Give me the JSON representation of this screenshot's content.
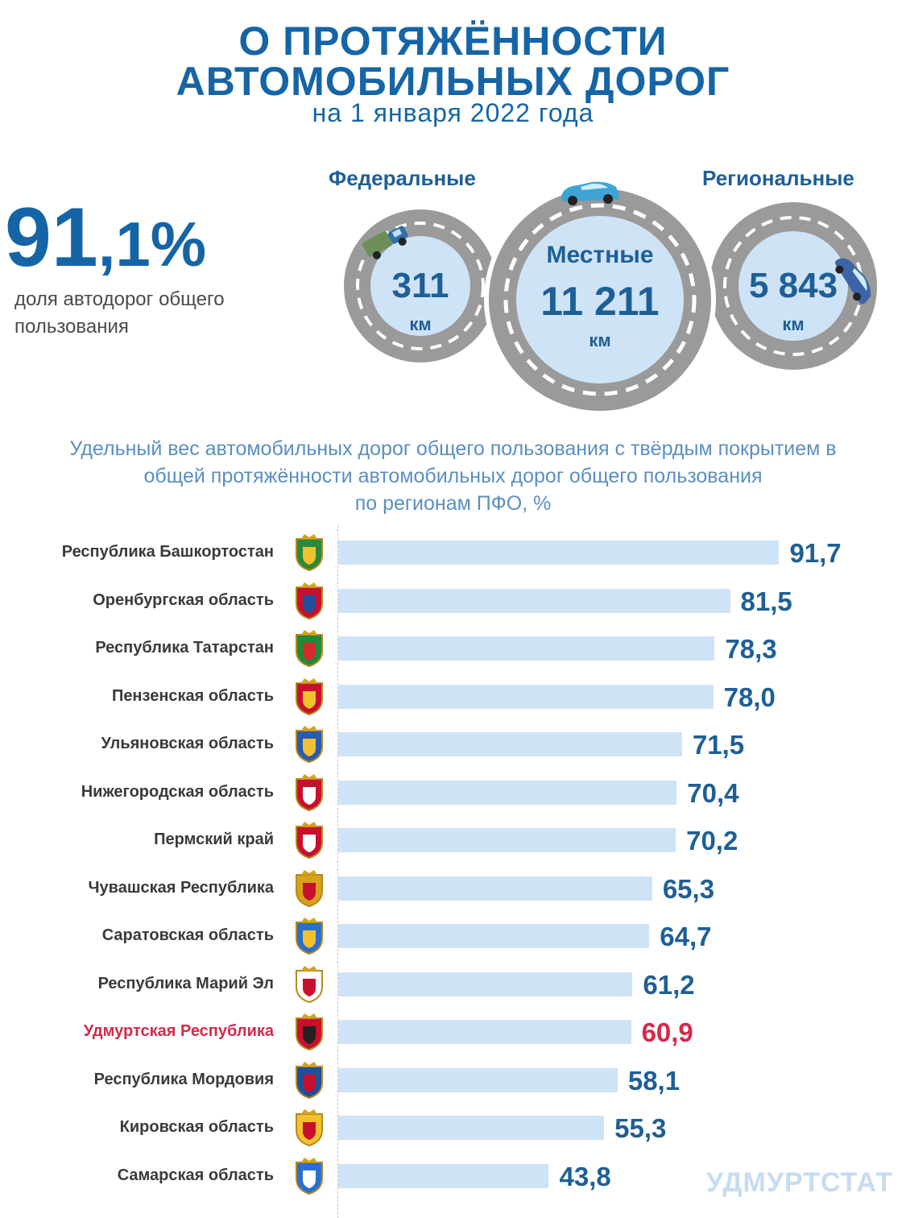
{
  "header": {
    "title_line1": "О ПРОТЯЖЁННОСТИ",
    "title_line2": "АВТОМОБИЛЬНЫХ ДОРОГ",
    "date_line": "на 1 января 2022 года"
  },
  "share": {
    "value_int": "91",
    "value_frac": ",1%",
    "description": "доля автодорог общего пользования"
  },
  "roads": {
    "federal": {
      "label": "Федеральные",
      "value": "311",
      "unit": "км"
    },
    "local": {
      "label": "Местные",
      "value": "11 211",
      "unit": "км"
    },
    "regional": {
      "label": "Региональные",
      "value": "5 843",
      "unit": "км"
    }
  },
  "colors": {
    "title": "#1565a6",
    "bar": "#cfe3f6",
    "value": "#1e5f96",
    "highlight": "#d6294a",
    "ring": "#9a9a9a"
  },
  "chart_data": {
    "type": "bar",
    "orientation": "horizontal",
    "title": "Удельный вес автомобильных дорог общего пользования с твёрдым покрытием в общей протяжённости автомобильных дорог общего пользования по регионам ПФО, %",
    "title_lines": [
      "Удельный вес автомобильных дорог общего пользования с твёрдым покрытием в",
      "общей протяжённости автомобильных дорог общего пользования",
      "по регионам ПФО, %"
    ],
    "value_labels": [
      "91,7",
      "81,5",
      "78,3",
      "78,0",
      "71,5",
      "70,4",
      "70,2",
      "65,3",
      "64,7",
      "61,2",
      "60,9",
      "58,1",
      "55,3",
      "43,8"
    ],
    "categories": [
      "Республика Башкортостан",
      "Оренбургская область",
      "Республика Татарстан",
      "Пензенская область",
      "Ульяновская область",
      "Нижегородская область",
      "Пермский край",
      "Чувашская Республика",
      "Саратовская область",
      "Республика Марий Эл",
      "Удмуртская Республика",
      "Республика Мордовия",
      "Кировская область",
      "Самарская область"
    ],
    "values": [
      91.7,
      81.5,
      78.3,
      78.0,
      71.5,
      70.4,
      70.2,
      65.3,
      64.7,
      61.2,
      60.9,
      58.1,
      55.3,
      43.8
    ],
    "highlight_index": 10,
    "xlim": [
      0,
      100
    ],
    "grid": false
  },
  "watermark": "УДМУРТСТАТ"
}
